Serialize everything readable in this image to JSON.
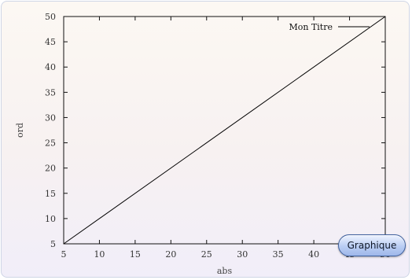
{
  "chart_data": {
    "type": "line",
    "title": "",
    "xlabel": "abs",
    "ylabel": "ord",
    "xlim": [
      5,
      50
    ],
    "ylim": [
      5,
      50
    ],
    "xticks": [
      5,
      10,
      15,
      20,
      25,
      30,
      35,
      40,
      45,
      50
    ],
    "yticks": [
      5,
      10,
      15,
      20,
      25,
      30,
      35,
      40,
      45,
      50
    ],
    "grid": false,
    "legend_position": "top-right",
    "series": [
      {
        "name": "Mon Titre",
        "color": "#000000",
        "x": [
          5,
          50
        ],
        "y": [
          5,
          50
        ]
      }
    ]
  },
  "button": {
    "label": "Graphique"
  }
}
